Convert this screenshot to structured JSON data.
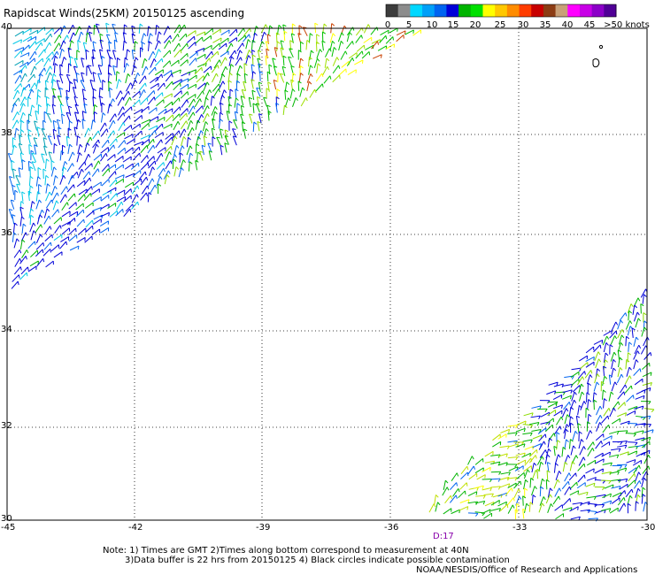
{
  "title": "Rapidscat Winds(25KM) 20150125 ascending",
  "legend": {
    "labels": [
      "0",
      "5",
      "10",
      "15",
      "20",
      "25",
      "30",
      "35",
      "40",
      "45",
      ">50 knots"
    ],
    "colors": [
      "#3c3c3c",
      "#8c8c8c",
      "#00d8ff",
      "#00a0f8",
      "#0064f0",
      "#0000d8",
      "#00b400",
      "#00e000",
      "#ffff00",
      "#ffc800",
      "#ff8c00",
      "#ff3c00",
      "#c80000",
      "#8c3c14",
      "#c8a078",
      "#ff00ff",
      "#c800e6",
      "#8c00c8",
      "#500096"
    ]
  },
  "axes": {
    "x_labels": [
      "-45",
      "-42",
      "-39",
      "-36",
      "-33",
      "-30"
    ],
    "y_labels": [
      "40",
      "38",
      "36",
      "34",
      "32",
      "30"
    ]
  },
  "time_label": "D:17",
  "notes": {
    "line1": "Note: 1) Times are GMT 2)Times along bottom correspond to measurement at 40N",
    "line2": "3)Data buffer is 22 hrs from 20150125 4) Black circles indicate possible contamination",
    "line3": "NOAA/NESDIS/Office of Research and Applications"
  },
  "colors": {
    "grid": "#000000",
    "time_label": "#8800aa"
  }
}
